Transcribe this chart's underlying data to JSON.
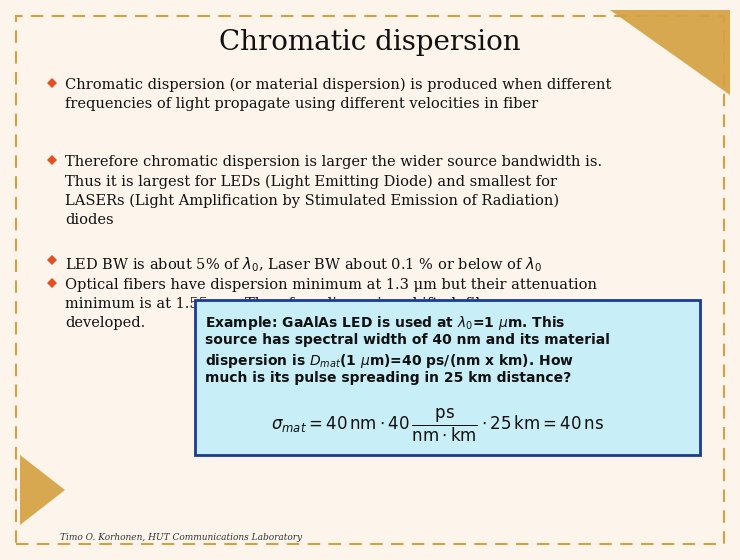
{
  "title": "Chromatic dispersion",
  "background_color": "#fdf5ec",
  "border_color": "#d4a040",
  "bullet_color": "#e05020",
  "bullet1": "Chromatic dispersion (or material dispersion) is produced when different\nfrequencies of light propagate using different velocities in fiber",
  "bullet2": "Therefore chromatic dispersion is larger the wider source bandwidth is.\nThus it is largest for LEDs (Light Emitting Diode) and smallest for\nLASERs (Light Amplification by Stimulated Emission of Radiation)\ndiodes",
  "bullet4": "Optical fibers have dispersion minimum at 1.3 μm but their attenuation\nminimum is at 1.55 μm. Therefore dispersion shifted  fibers were\ndeveloped.",
  "example_box_bg": "#c8eef8",
  "example_box_border": "#1a3a9a",
  "footer": "Timo O. Korhonen, HUT Communications Laboratory",
  "triangle_color": "#d4a040",
  "title_fontsize": 20,
  "body_fontsize": 10.5,
  "example_fontsize": 10
}
